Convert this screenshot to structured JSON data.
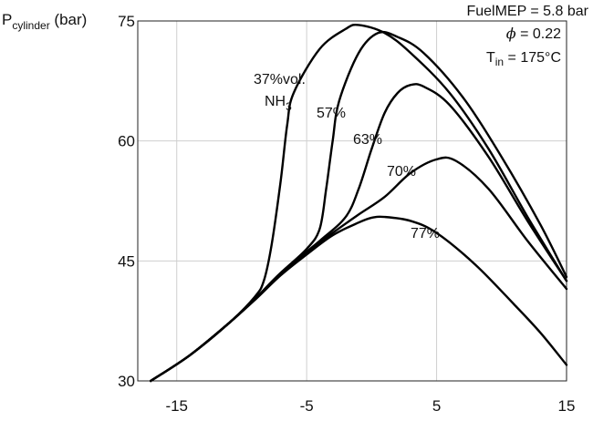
{
  "chart_data": {
    "type": "line",
    "title": "",
    "xlabel": "",
    "ylabel": {
      "main": "P",
      "sub": "cylinder",
      "unit": " (bar)"
    },
    "xlim": [
      -18,
      15
    ],
    "ylim": [
      30,
      75
    ],
    "x_ticks": [
      -15,
      -5,
      5,
      15
    ],
    "y_ticks": [
      30,
      45,
      60,
      75
    ],
    "grid": "major",
    "annotations": [
      {
        "text": "FuelMEP = 5.8 bar"
      },
      {
        "symbol": "ϕ",
        "text": " = 0.22"
      },
      {
        "main": "T",
        "sub": "in",
        "text": " = 175°C"
      }
    ],
    "series_label_prefix": {
      "text": "37%vol.",
      "line2_main": "NH",
      "line2_sub": "3"
    },
    "series": [
      {
        "name": "37%",
        "label_text": "",
        "values": [
          [
            -17,
            30
          ],
          [
            -14,
            33.2
          ],
          [
            -11,
            37.2
          ],
          [
            -9,
            40.5
          ],
          [
            -8.3,
            42.5
          ],
          [
            -7.7,
            47
          ],
          [
            -7,
            55
          ],
          [
            -6.5,
            62
          ],
          [
            -6,
            66
          ],
          [
            -4,
            71.5
          ],
          [
            -2,
            74
          ],
          [
            -1,
            74.5
          ],
          [
            1,
            73.5
          ],
          [
            3,
            71
          ],
          [
            6,
            66
          ],
          [
            9,
            59
          ],
          [
            12,
            50.5
          ],
          [
            15,
            42.5
          ]
        ]
      },
      {
        "name": "57%",
        "label_text": "57%",
        "values": [
          [
            -17,
            30
          ],
          [
            -14,
            33.2
          ],
          [
            -11,
            37.2
          ],
          [
            -9,
            40.2
          ],
          [
            -7,
            43.5
          ],
          [
            -5,
            46.5
          ],
          [
            -4,
            49
          ],
          [
            -3.5,
            54
          ],
          [
            -3,
            60
          ],
          [
            -2.5,
            65
          ],
          [
            -1,
            71
          ],
          [
            0.5,
            73.5
          ],
          [
            2,
            73
          ],
          [
            4,
            71
          ],
          [
            7,
            65.5
          ],
          [
            10,
            58
          ],
          [
            13,
            49.5
          ],
          [
            15,
            43
          ]
        ]
      },
      {
        "name": "63%",
        "label_text": "63%",
        "values": [
          [
            -17,
            30
          ],
          [
            -14,
            33.2
          ],
          [
            -11,
            37.2
          ],
          [
            -9,
            40.2
          ],
          [
            -7,
            43.5
          ],
          [
            -4,
            47.5
          ],
          [
            -2,
            50.5
          ],
          [
            -1,
            54
          ],
          [
            0,
            59
          ],
          [
            1,
            63.5
          ],
          [
            2,
            66
          ],
          [
            3,
            67
          ],
          [
            4,
            66.8
          ],
          [
            6,
            64.5
          ],
          [
            9,
            58
          ],
          [
            12,
            50
          ],
          [
            15,
            42.5
          ]
        ]
      },
      {
        "name": "70%",
        "label_text": "70%",
        "values": [
          [
            -17,
            30
          ],
          [
            -14,
            33.2
          ],
          [
            -11,
            37.2
          ],
          [
            -9,
            40.2
          ],
          [
            -7,
            43.4
          ],
          [
            -5,
            46
          ],
          [
            -3,
            48.5
          ],
          [
            -1,
            50.8
          ],
          [
            1,
            53
          ],
          [
            3,
            56
          ],
          [
            5,
            57.7
          ],
          [
            6.5,
            57.5
          ],
          [
            9,
            54
          ],
          [
            12,
            47.5
          ],
          [
            15,
            41.5
          ]
        ]
      },
      {
        "name": "77%",
        "label_text": "77%",
        "values": [
          [
            -17,
            30
          ],
          [
            -14,
            33.2
          ],
          [
            -11,
            37.2
          ],
          [
            -9,
            40.1
          ],
          [
            -7,
            43.2
          ],
          [
            -5,
            45.8
          ],
          [
            -3,
            48.2
          ],
          [
            -1,
            49.8
          ],
          [
            0,
            50.4
          ],
          [
            1,
            50.5
          ],
          [
            3,
            50
          ],
          [
            5,
            48.5
          ],
          [
            8,
            44.5
          ],
          [
            11,
            39.5
          ],
          [
            13,
            36
          ],
          [
            15,
            32
          ]
        ]
      }
    ]
  }
}
